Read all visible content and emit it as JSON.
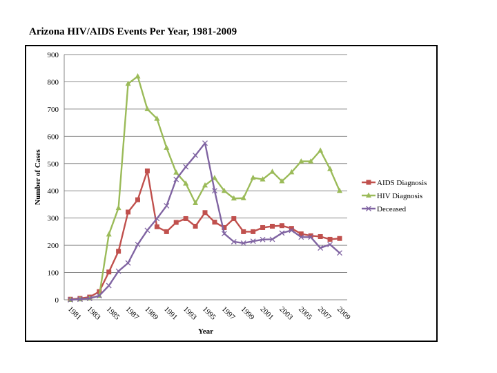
{
  "title": "Arizona HIV/AIDS Events Per Year, 1981-2009",
  "chart_data": {
    "type": "line",
    "title": "Arizona HIV/AIDS Events Per Year, 1981-2009",
    "xlabel": "Year",
    "ylabel": "Number of Cases",
    "ylim": [
      0,
      900
    ],
    "yticks": [
      0,
      100,
      200,
      300,
      400,
      500,
      600,
      700,
      800,
      900
    ],
    "x": [
      1981,
      1982,
      1983,
      1984,
      1985,
      1986,
      1987,
      1988,
      1989,
      1990,
      1991,
      1992,
      1993,
      1994,
      1995,
      1996,
      1997,
      1998,
      1999,
      2000,
      2001,
      2002,
      2003,
      2004,
      2005,
      2006,
      2007,
      2008,
      2009
    ],
    "xticklabels": [
      "1981",
      "1983",
      "1985",
      "1987",
      "1989",
      "1991",
      "1993",
      "1995",
      "1997",
      "1999",
      "2001",
      "2003",
      "2005",
      "2007",
      "2009"
    ],
    "grid": "horizontal",
    "legend": "right",
    "series": [
      {
        "name": "AIDS Diagnosis",
        "color": "#c0504d",
        "marker": "square",
        "values": [
          2,
          5,
          10,
          30,
          102,
          178,
          322,
          367,
          473,
          268,
          250,
          284,
          298,
          270,
          320,
          285,
          265,
          298,
          250,
          250,
          265,
          270,
          272,
          262,
          242,
          235,
          232,
          222,
          225
        ]
      },
      {
        "name": "HIV Diagnosis",
        "color": "#9bbb59",
        "marker": "triangle",
        "values": [
          0,
          2,
          5,
          15,
          240,
          337,
          793,
          820,
          700,
          665,
          558,
          467,
          427,
          355,
          420,
          447,
          400,
          372,
          373,
          448,
          442,
          470,
          435,
          468,
          508,
          508,
          548,
          480,
          400
        ]
      },
      {
        "name": "Deceased",
        "color": "#8064a2",
        "marker": "x",
        "values": [
          0,
          2,
          5,
          15,
          52,
          105,
          135,
          203,
          255,
          298,
          345,
          442,
          488,
          530,
          575,
          400,
          243,
          213,
          208,
          215,
          221,
          222,
          245,
          255,
          230,
          230,
          190,
          203,
          172
        ]
      }
    ]
  }
}
